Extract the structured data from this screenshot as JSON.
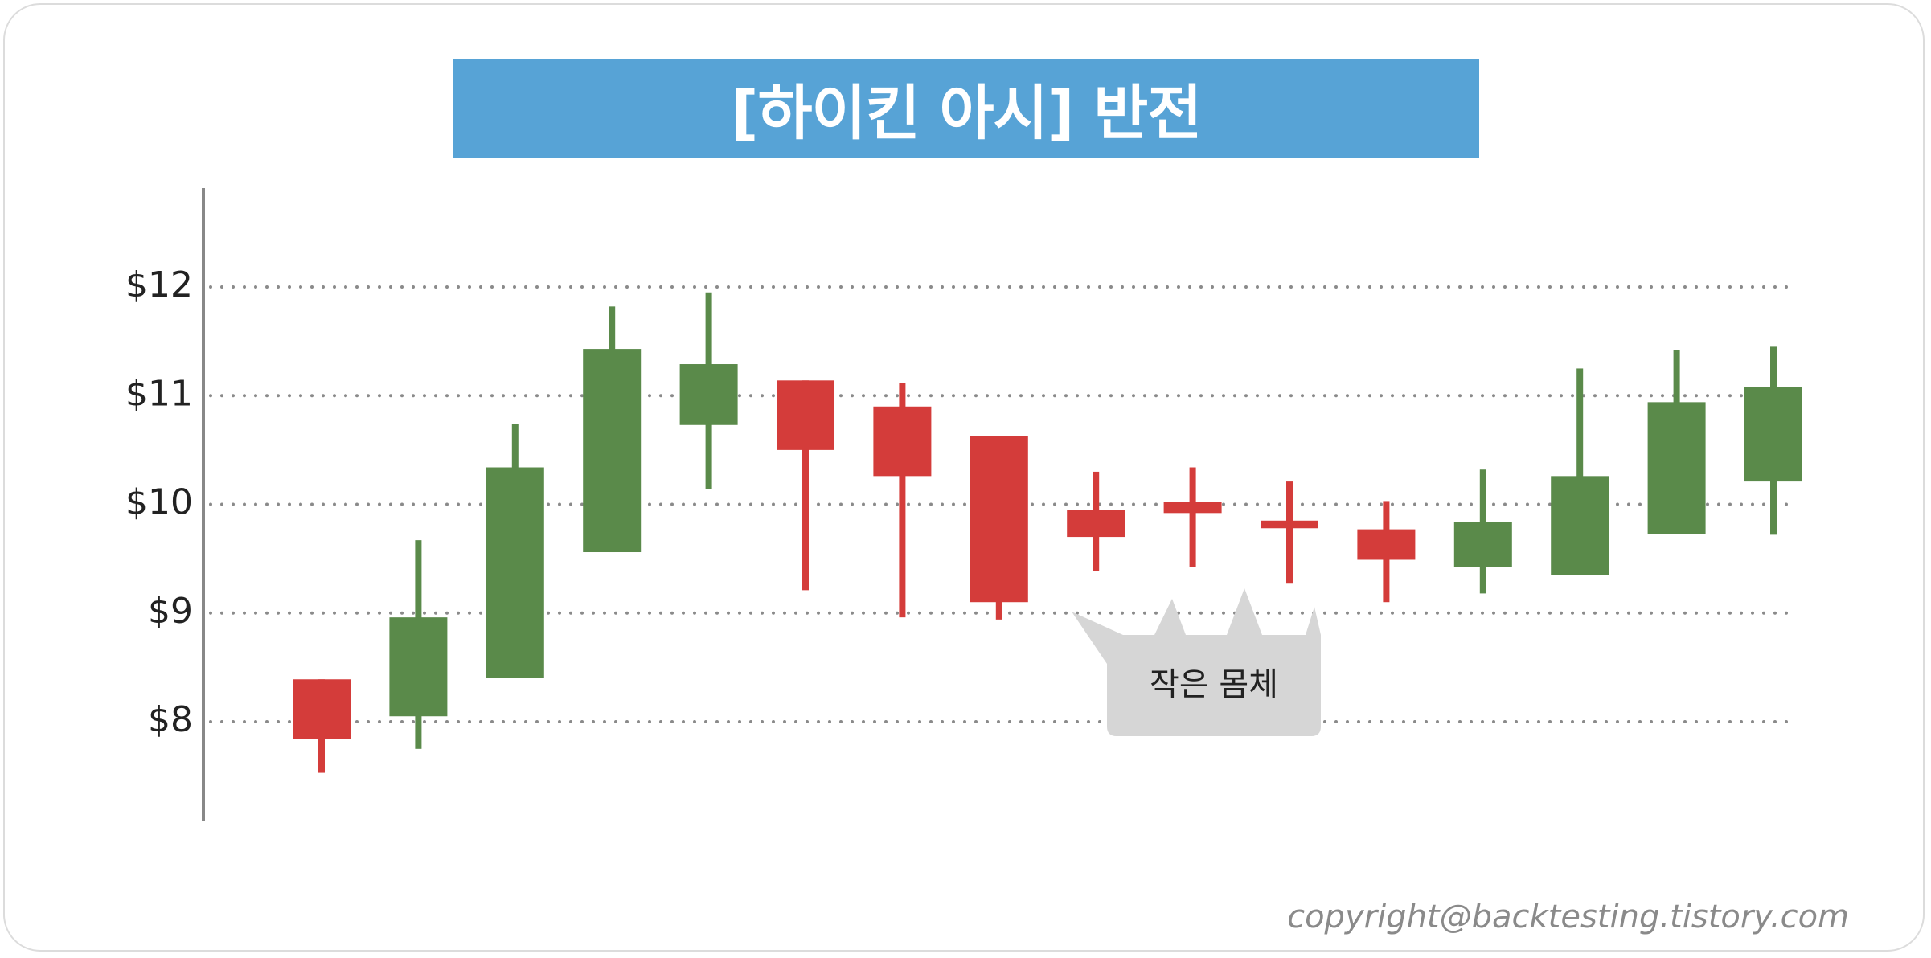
{
  "title": "[하이킨 아시] 반전",
  "colors": {
    "title_bg": "#57a3d6",
    "bullish": "#5a8a4a",
    "bearish": "#d43c3a",
    "callout_bg": "#d6d6d6",
    "axis": "#888888",
    "grid": "#8a8a8a"
  },
  "chart_data": {
    "type": "candlestick",
    "title": "[하이킨 아시] 반전",
    "ylim": [
      7.05,
      12.85
    ],
    "yticks": [
      8,
      9,
      10,
      11,
      12
    ],
    "ytick_labels": [
      "$8",
      "$9",
      "$10",
      "$11",
      "$12"
    ],
    "grid": "horizontal dotted",
    "candles": [
      {
        "open": 8.39,
        "close": 7.84,
        "high": 8.39,
        "low": 7.53
      },
      {
        "open": 8.05,
        "close": 8.96,
        "high": 9.67,
        "low": 7.75
      },
      {
        "open": 8.4,
        "close": 10.34,
        "high": 10.74,
        "low": 8.4
      },
      {
        "open": 9.56,
        "close": 11.43,
        "high": 11.82,
        "low": 9.56
      },
      {
        "open": 10.73,
        "close": 11.29,
        "high": 11.95,
        "low": 10.14
      },
      {
        "open": 11.14,
        "close": 10.5,
        "high": 11.14,
        "low": 9.21
      },
      {
        "open": 10.9,
        "close": 10.26,
        "high": 11.12,
        "low": 8.96
      },
      {
        "open": 10.63,
        "close": 9.1,
        "high": 10.63,
        "low": 8.94
      },
      {
        "open": 9.95,
        "close": 9.7,
        "high": 10.3,
        "low": 9.39
      },
      {
        "open": 10.02,
        "close": 9.92,
        "high": 10.34,
        "low": 9.42
      },
      {
        "open": 9.85,
        "close": 9.78,
        "high": 10.21,
        "low": 9.27
      },
      {
        "open": 9.77,
        "close": 9.49,
        "high": 10.03,
        "low": 9.1
      },
      {
        "open": 9.42,
        "close": 9.84,
        "high": 10.32,
        "low": 9.18
      },
      {
        "open": 9.35,
        "close": 10.26,
        "high": 11.25,
        "low": 9.35
      },
      {
        "open": 9.73,
        "close": 10.94,
        "high": 11.42,
        "low": 9.73
      },
      {
        "open": 10.21,
        "close": 11.08,
        "high": 11.45,
        "low": 9.72
      }
    ],
    "annotations": [
      {
        "text": "작은 몸체",
        "points_to_candles": [
          8,
          9,
          10,
          11
        ]
      }
    ]
  },
  "copyright": "copyright@backtesting.tistory.com"
}
